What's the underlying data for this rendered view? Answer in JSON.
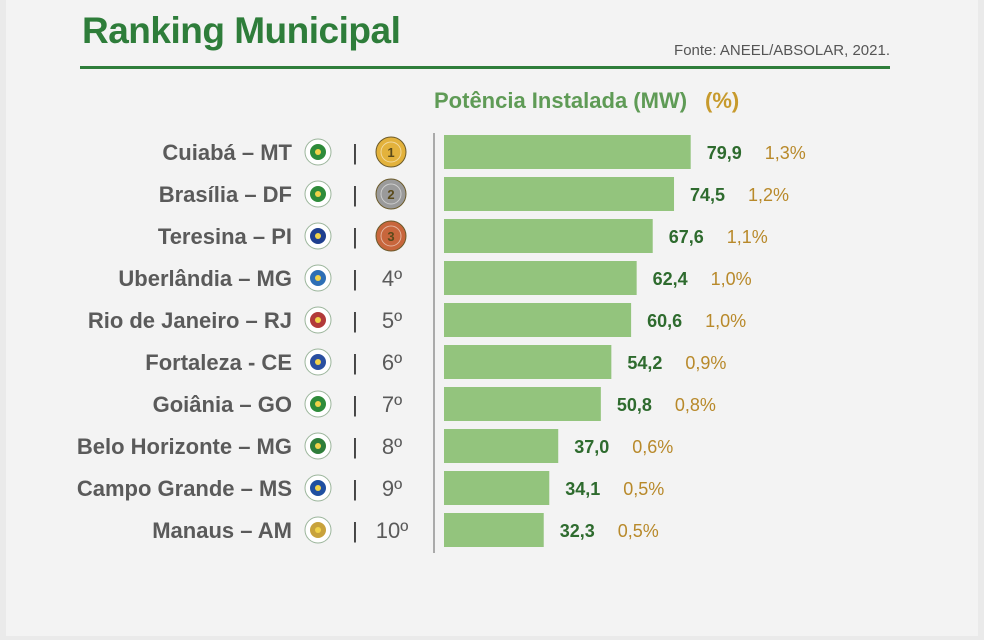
{
  "title": "Ranking Municipal",
  "source": "Fonte: ANEEL/ABSOLAR, 2021.",
  "header": {
    "metric": "Potência Instalada (MW)",
    "percent": "(%)"
  },
  "colors": {
    "bar": "#93c47d",
    "title": "#2e7d3a",
    "value": "#2e6b2e",
    "percent": "#b8892a",
    "gold": "#e3b23c",
    "silver": "#9a9a9a",
    "bronze": "#c8663c"
  },
  "chart_data": {
    "type": "bar",
    "orientation": "horizontal",
    "title": "Ranking Municipal",
    "xlabel": "Potência Instalada (MW)",
    "categories": [
      "Cuiabá – MT",
      "Brasília – DF",
      "Teresina – PI",
      "Uberlândia – MG",
      "Rio de Janeiro – RJ",
      "Fortaleza - CE",
      "Goiânia – GO",
      "Belo Horizonte – MG",
      "Campo Grande – MS",
      "Manaus – AM"
    ],
    "ranks": [
      "1",
      "2",
      "3",
      "4º",
      "5º",
      "6º",
      "7º",
      "8º",
      "9º",
      "10º"
    ],
    "values": [
      79.9,
      74.5,
      67.6,
      62.4,
      60.6,
      54.2,
      50.8,
      37.0,
      34.1,
      32.3
    ],
    "value_labels": [
      "79,9",
      "74,5",
      "67,6",
      "62,4",
      "60,6",
      "54,2",
      "50,8",
      "37,0",
      "34,1",
      "32,3"
    ],
    "percent_labels": [
      "1,3%",
      "1,2%",
      "1,1%",
      "1,0%",
      "1,0%",
      "0,9%",
      "0,8%",
      "0,6%",
      "0,5%",
      "0,5%"
    ],
    "medals": [
      "gold",
      "silver",
      "bronze"
    ],
    "flag_icons": [
      "cuiaba-flag-icon",
      "brasilia-flag-icon",
      "teresina-flag-icon",
      "uberlandia-flag-icon",
      "rio-de-janeiro-flag-icon",
      "fortaleza-flag-icon",
      "goiania-flag-icon",
      "belo-horizonte-flag-icon",
      "campo-grande-flag-icon",
      "manaus-flag-icon"
    ],
    "xlim": [
      0,
      80
    ],
    "grid": false
  }
}
